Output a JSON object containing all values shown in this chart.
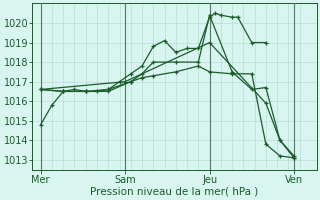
{
  "xlabel": "Pression niveau de la mer( hPa )",
  "bg_color": "#d8f5f0",
  "grid_color": "#b8ddd8",
  "line_color": "#1a5c2a",
  "ylim": [
    1012.5,
    1021.0
  ],
  "xlim": [
    -0.3,
    9.8
  ],
  "day_labels": [
    "Mer",
    "Sam",
    "Jeu",
    "Ven"
  ],
  "day_positions": [
    0,
    3,
    6,
    9
  ],
  "series": [
    {
      "x": [
        0,
        0.4,
        0.8,
        1.2,
        1.6,
        2.0,
        2.4,
        2.8,
        3.2,
        3.6,
        4.0,
        4.4,
        4.8,
        5.2,
        5.6,
        6.0,
        6.2,
        6.4,
        6.8,
        7.0,
        7.5,
        8.0
      ],
      "y": [
        1014.8,
        1015.8,
        1016.5,
        1016.6,
        1016.5,
        1016.5,
        1016.6,
        1017.0,
        1017.4,
        1017.8,
        1018.8,
        1019.1,
        1018.5,
        1018.7,
        1018.7,
        1020.3,
        1020.5,
        1020.4,
        1020.3,
        1020.3,
        1019.0,
        1019.0
      ]
    },
    {
      "x": [
        0,
        0.8,
        1.6,
        2.4,
        3.2,
        3.6,
        4.0,
        4.8,
        5.6,
        6.0,
        6.8,
        7.5,
        8.0,
        8.5,
        9.0
      ],
      "y": [
        1016.6,
        1016.5,
        1016.5,
        1016.6,
        1017.0,
        1017.4,
        1018.0,
        1018.0,
        1018.0,
        1020.4,
        1017.5,
        1016.6,
        1016.7,
        1014.0,
        1013.2
      ]
    },
    {
      "x": [
        0,
        0.8,
        1.6,
        2.4,
        3.2,
        3.6,
        4.0,
        4.8,
        5.6,
        6.0,
        6.8,
        7.5,
        8.0,
        8.5,
        9.0
      ],
      "y": [
        1016.6,
        1016.5,
        1016.5,
        1016.5,
        1017.0,
        1017.2,
        1017.3,
        1017.5,
        1017.8,
        1017.5,
        1017.4,
        1017.4,
        1013.8,
        1013.2,
        1013.1
      ]
    },
    {
      "x": [
        0,
        3.0,
        6.0,
        8.0,
        8.5,
        9.0
      ],
      "y": [
        1016.6,
        1017.0,
        1019.0,
        1015.9,
        1014.0,
        1013.1
      ]
    }
  ],
  "yticks": [
    1013,
    1014,
    1015,
    1016,
    1017,
    1018,
    1019,
    1020
  ],
  "xticks_minor": [
    0,
    0.4,
    0.8,
    1.2,
    1.6,
    2.0,
    2.4,
    2.8,
    3.2,
    3.6,
    4.0,
    4.4,
    4.8,
    5.2,
    5.6,
    6.0,
    6.4,
    6.8,
    7.2,
    7.6,
    8.0,
    8.4,
    8.8,
    9.2
  ]
}
